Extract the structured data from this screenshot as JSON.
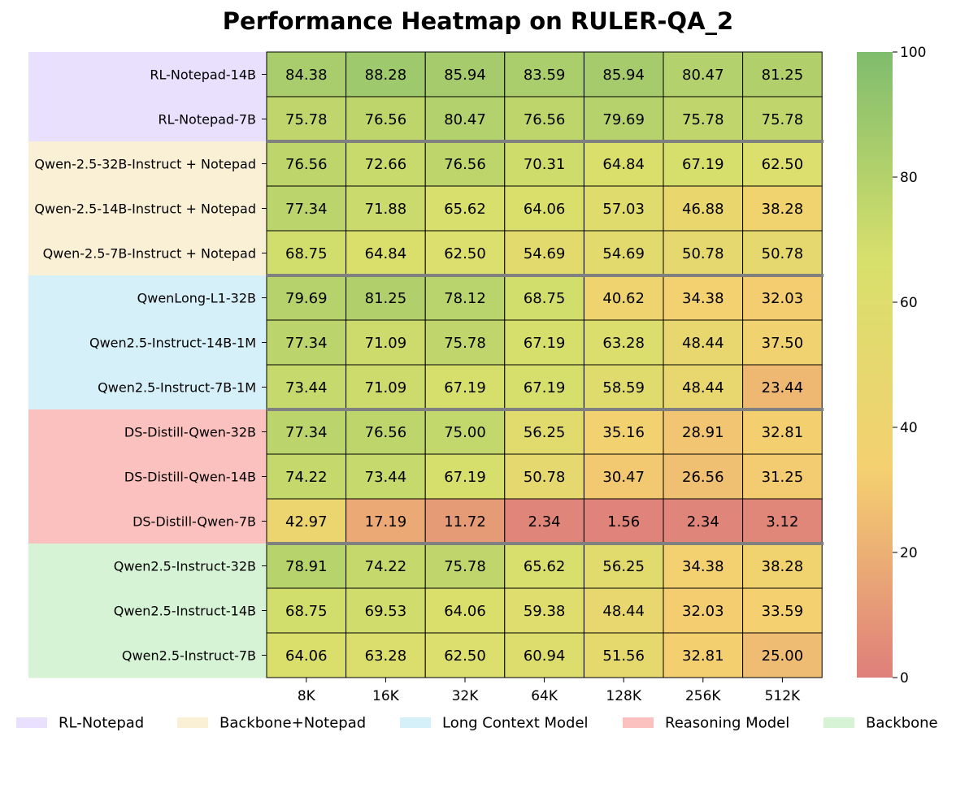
{
  "chart_data": {
    "type": "heatmap",
    "title": "Performance Heatmap on RULER-QA_2",
    "x": [
      "8K",
      "16K",
      "32K",
      "64K",
      "128K",
      "256K",
      "512K"
    ],
    "rows": [
      {
        "name": "RL-Notepad-14B",
        "group": 0,
        "values": [
          84.38,
          88.28,
          85.94,
          83.59,
          85.94,
          80.47,
          81.25
        ]
      },
      {
        "name": "RL-Notepad-7B",
        "group": 0,
        "values": [
          75.78,
          76.56,
          80.47,
          76.56,
          79.69,
          75.78,
          75.78
        ]
      },
      {
        "name": "Qwen-2.5-32B-Instruct + Notepad",
        "group": 1,
        "values": [
          76.56,
          72.66,
          76.56,
          70.31,
          64.84,
          67.19,
          62.5
        ]
      },
      {
        "name": "Qwen-2.5-14B-Instruct + Notepad",
        "group": 1,
        "values": [
          77.34,
          71.88,
          65.62,
          64.06,
          57.03,
          46.88,
          38.28
        ]
      },
      {
        "name": "Qwen-2.5-7B-Instruct + Notepad",
        "group": 1,
        "values": [
          68.75,
          64.84,
          62.5,
          54.69,
          54.69,
          50.78,
          50.78
        ]
      },
      {
        "name": "QwenLong-L1-32B",
        "group": 2,
        "values": [
          79.69,
          81.25,
          78.12,
          68.75,
          40.62,
          34.38,
          32.03
        ]
      },
      {
        "name": "Qwen2.5-Instruct-14B-1M",
        "group": 2,
        "values": [
          77.34,
          71.09,
          75.78,
          67.19,
          63.28,
          48.44,
          37.5
        ]
      },
      {
        "name": "Qwen2.5-Instruct-7B-1M",
        "group": 2,
        "values": [
          73.44,
          71.09,
          67.19,
          67.19,
          58.59,
          48.44,
          23.44
        ]
      },
      {
        "name": "DS-Distill-Qwen-32B",
        "group": 3,
        "values": [
          77.34,
          76.56,
          75.0,
          56.25,
          35.16,
          28.91,
          32.81
        ]
      },
      {
        "name": "DS-Distill-Qwen-14B",
        "group": 3,
        "values": [
          74.22,
          73.44,
          67.19,
          50.78,
          30.47,
          26.56,
          31.25
        ]
      },
      {
        "name": "DS-Distill-Qwen-7B",
        "group": 3,
        "values": [
          42.97,
          17.19,
          11.72,
          2.34,
          1.56,
          2.34,
          3.12
        ]
      },
      {
        "name": "Qwen2.5-Instruct-32B",
        "group": 4,
        "values": [
          78.91,
          74.22,
          75.78,
          65.62,
          56.25,
          34.38,
          38.28
        ]
      },
      {
        "name": "Qwen2.5-Instruct-14B",
        "group": 4,
        "values": [
          68.75,
          69.53,
          64.06,
          59.38,
          48.44,
          32.03,
          33.59
        ]
      },
      {
        "name": "Qwen2.5-Instruct-7B",
        "group": 4,
        "values": [
          64.06,
          63.28,
          62.5,
          60.94,
          51.56,
          32.81,
          25.0
        ]
      }
    ],
    "groups": [
      {
        "name": "RL-Notepad",
        "color": "#e8e0fc"
      },
      {
        "name": "Backbone+Notepad",
        "color": "#f9f0d5"
      },
      {
        "name": "Long Context Model",
        "color": "#d6f0fa"
      },
      {
        "name": "Reasoning Model",
        "color": "#fbc1bf"
      },
      {
        "name": "Backbone",
        "color": "#d6f3d5"
      }
    ],
    "colorbar": {
      "range": [
        0,
        100
      ],
      "ticks": [
        0,
        20,
        40,
        60,
        80,
        100
      ],
      "colors": [
        "#df7f7b",
        "#f4d070",
        "#d8e06c",
        "#7fbc6d"
      ]
    },
    "legend_position": "bottom",
    "group_separator_color": "#808080"
  }
}
